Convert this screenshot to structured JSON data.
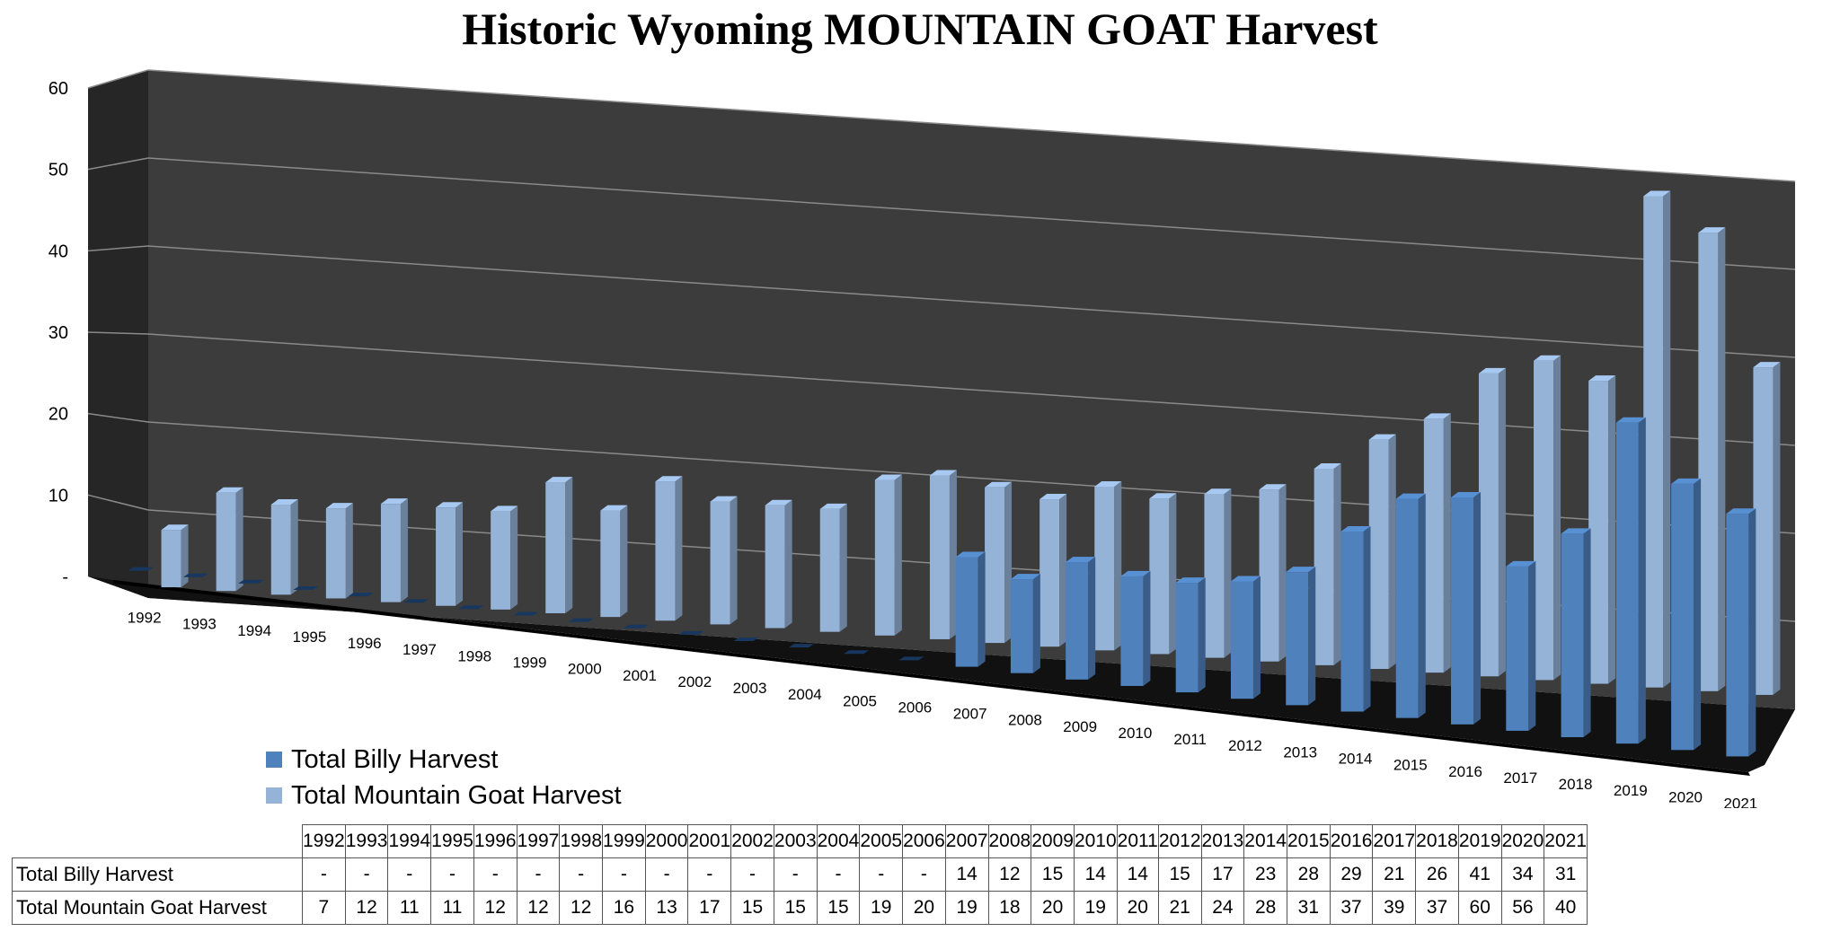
{
  "chart_data": {
    "type": "bar",
    "title": "Historic Wyoming MOUNTAIN GOAT Harvest",
    "categories": [
      "1992",
      "1993",
      "1994",
      "1995",
      "1996",
      "1997",
      "1998",
      "1999",
      "2000",
      "2001",
      "2002",
      "2003",
      "2004",
      "2005",
      "2006",
      "2007",
      "2008",
      "2009",
      "2010",
      "2011",
      "2012",
      "2013",
      "2014",
      "2015",
      "2016",
      "2017",
      "2018",
      "2019",
      "2020",
      "2021"
    ],
    "series": [
      {
        "name": "Total Billy Harvest",
        "color": "#4f81bd",
        "values": [
          null,
          null,
          null,
          null,
          null,
          null,
          null,
          null,
          null,
          null,
          null,
          null,
          null,
          null,
          null,
          14,
          12,
          15,
          14,
          14,
          15,
          17,
          23,
          28,
          29,
          21,
          26,
          41,
          34,
          31
        ],
        "table_values": [
          "-",
          "-",
          "-",
          "-",
          "-",
          "-",
          "-",
          "-",
          "-",
          "-",
          "-",
          "-",
          "-",
          "-",
          "-",
          "14",
          "12",
          "15",
          "14",
          "14",
          "15",
          "17",
          "23",
          "28",
          "29",
          "21",
          "26",
          "41",
          "34",
          "31"
        ]
      },
      {
        "name": "Total Mountain Goat Harvest",
        "color": "#95b3d7",
        "values": [
          7,
          12,
          11,
          11,
          12,
          12,
          12,
          16,
          13,
          17,
          15,
          15,
          15,
          19,
          20,
          19,
          18,
          20,
          19,
          20,
          21,
          24,
          28,
          31,
          37,
          39,
          37,
          60,
          56,
          40
        ],
        "table_values": [
          "7",
          "12",
          "11",
          "11",
          "12",
          "12",
          "12",
          "16",
          "13",
          "17",
          "15",
          "15",
          "15",
          "19",
          "20",
          "19",
          "18",
          "20",
          "19",
          "20",
          "21",
          "24",
          "28",
          "31",
          "37",
          "39",
          "37",
          "60",
          "56",
          "40"
        ]
      }
    ],
    "ylim": [
      0,
      60
    ],
    "yticks": [
      0,
      10,
      20,
      30,
      40,
      50,
      60
    ],
    "ytick_labels": [
      "-",
      "10",
      "20",
      "30",
      "40",
      "50",
      "60"
    ],
    "grid": true,
    "legend_position": "bottom-left",
    "style": "3d-clustered-column",
    "colors": {
      "wall": "#3c3c3c",
      "side_wall": "#262626",
      "floor": "#111111",
      "grid": "#8a8a8a"
    }
  }
}
